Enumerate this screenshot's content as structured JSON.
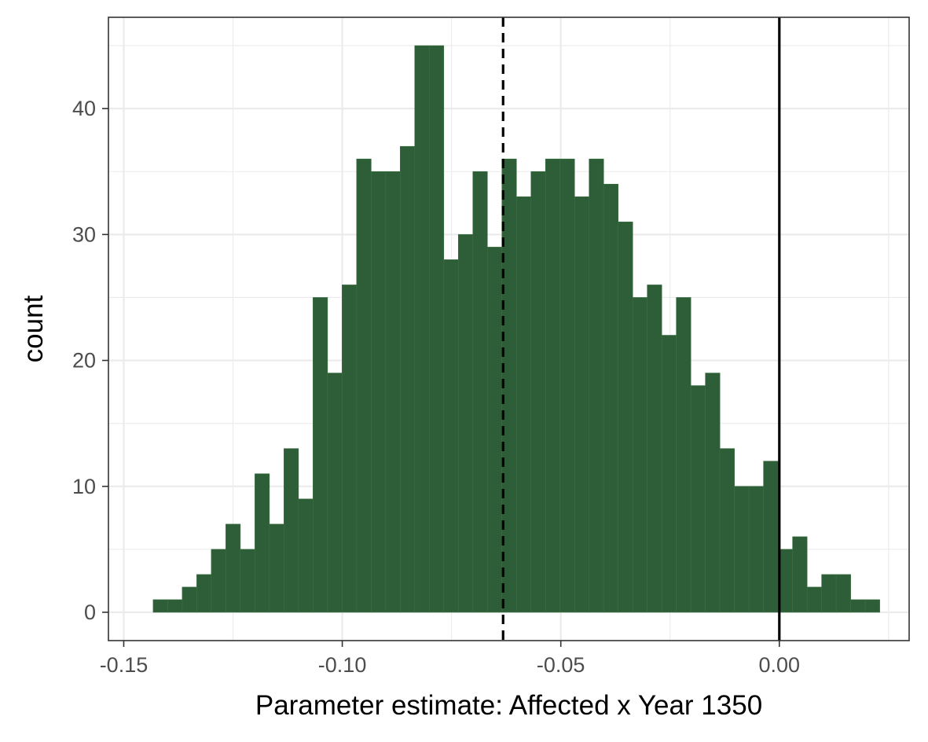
{
  "chart_data": {
    "type": "bar",
    "xlabel": "Parameter estimate: Affected x Year 1350",
    "ylabel": "count",
    "xlim": [
      -0.1535,
      0.0297
    ],
    "ylim": [
      -2.25,
      47.25
    ],
    "x_ticks": [
      {
        "value": -0.15,
        "label": "-0.15"
      },
      {
        "value": -0.1,
        "label": "-0.10"
      },
      {
        "value": -0.05,
        "label": "-0.05"
      },
      {
        "value": 0.0,
        "label": "0.00"
      }
    ],
    "y_ticks": [
      {
        "value": 0,
        "label": "0"
      },
      {
        "value": 10,
        "label": "10"
      },
      {
        "value": 20,
        "label": "20"
      },
      {
        "value": 30,
        "label": "30"
      },
      {
        "value": 40,
        "label": "40"
      }
    ],
    "grid": true,
    "bin_width": 0.003325,
    "bin_start": -0.14327,
    "counts": [
      1,
      1,
      2,
      3,
      5,
      7,
      5,
      11,
      7,
      13,
      9,
      25,
      19,
      26,
      36,
      35,
      35,
      37,
      45,
      45,
      28,
      30,
      35,
      29,
      36,
      33,
      35,
      36,
      36,
      33,
      36,
      34,
      31,
      25,
      26,
      22,
      25,
      18,
      19,
      13,
      10,
      10,
      12,
      5,
      6,
      2,
      3,
      3,
      1,
      1
    ],
    "reference_lines": [
      {
        "x": -0.0632,
        "style": "dashed"
      },
      {
        "x": 0.0,
        "style": "solid"
      }
    ],
    "colors": {
      "bar_fill": "#2e5e37",
      "bar_edge": "#3b7044",
      "grid": "#ebebeb",
      "panel_border": "#333333",
      "tick_text": "#4d4d4d"
    }
  }
}
